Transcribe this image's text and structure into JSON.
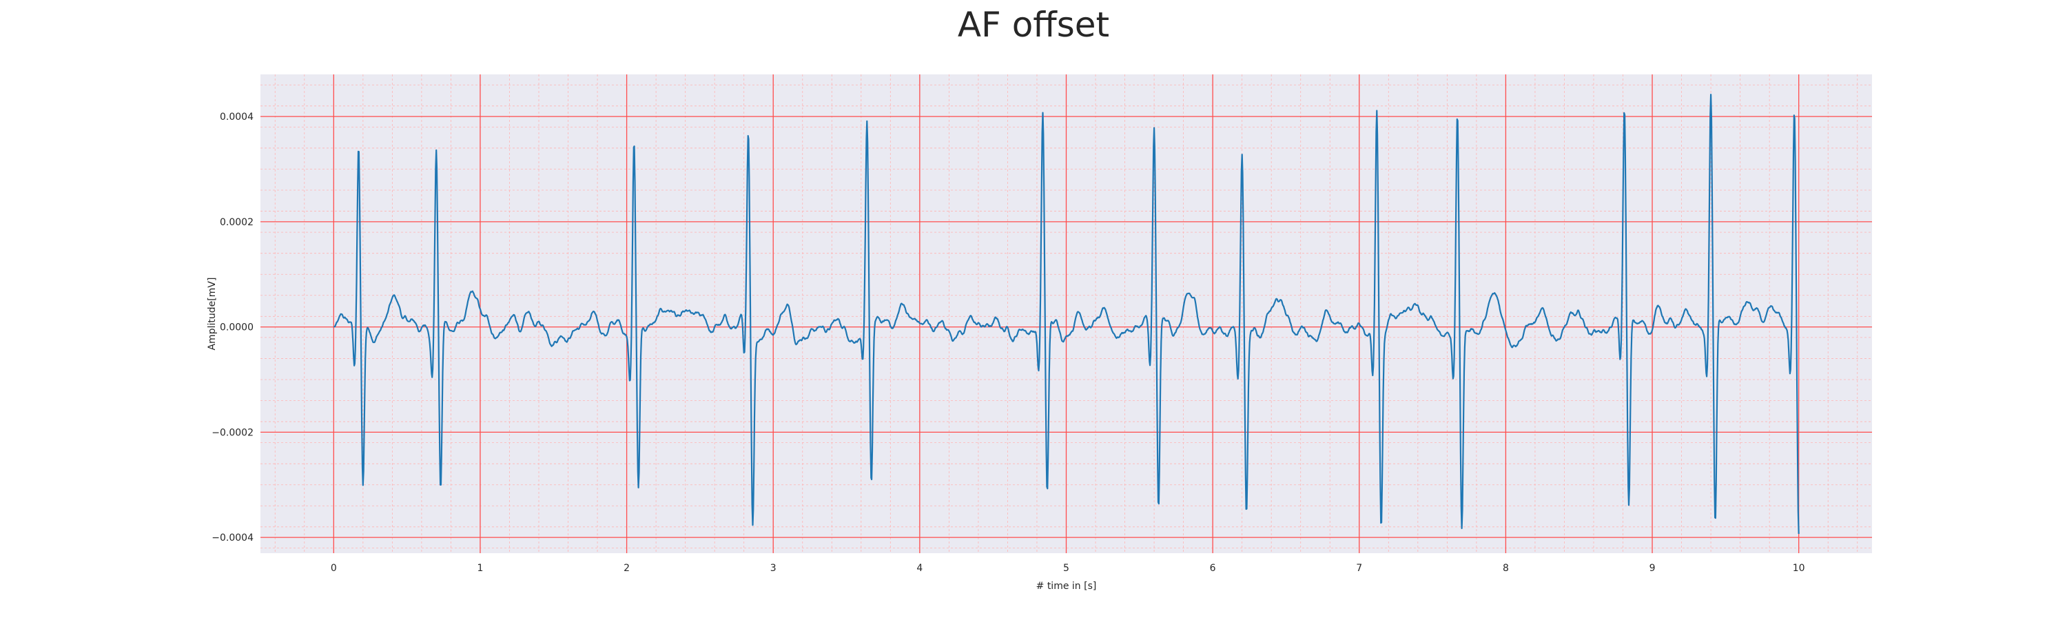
{
  "page": {
    "title": "AF offset"
  },
  "chart_data": {
    "type": "line",
    "title": "AF offset",
    "xlabel": "# time in [s]",
    "ylabel": "Amplitude[mV]",
    "xlim": [
      -0.5,
      10.5
    ],
    "ylim": [
      -0.00043,
      0.00048
    ],
    "xticks": [
      0,
      1,
      2,
      3,
      4,
      5,
      6,
      7,
      8,
      9,
      10
    ],
    "xtick_labels": [
      "0",
      "1",
      "2",
      "3",
      "4",
      "5",
      "6",
      "7",
      "8",
      "9",
      "10"
    ],
    "yticks": [
      -0.0004,
      -0.0002,
      0.0,
      0.0002,
      0.0004
    ],
    "ytick_labels": [
      "−0.0004",
      "−0.0002",
      "0.0000",
      "0.0002",
      "0.0004"
    ],
    "grid": {
      "major": true,
      "minor": true,
      "major_color": "#ff4d4d",
      "minor_color": "#ffb3b3"
    },
    "background": "#eaeaf2",
    "line_color": "#1f77b4",
    "series": [
      {
        "beats": [
          {
            "t": 0.17,
            "r": 0.00034,
            "s": -0.00031
          },
          {
            "t": 0.7,
            "r": 0.00035,
            "s": -0.00031
          },
          {
            "t": 2.05,
            "r": 0.00037,
            "s": -0.00031
          },
          {
            "t": 2.83,
            "r": 0.00037,
            "s": -0.00036
          },
          {
            "t": 3.64,
            "r": 0.00036,
            "s": -0.00031
          },
          {
            "t": 4.84,
            "r": 0.0004,
            "s": -0.00033
          },
          {
            "t": 5.6,
            "r": 0.00036,
            "s": -0.00037
          },
          {
            "t": 6.2,
            "r": 0.00035,
            "s": -0.00034
          },
          {
            "t": 7.12,
            "r": 0.00044,
            "s": -0.00035
          },
          {
            "t": 7.67,
            "r": 0.0004,
            "s": -0.00039
          },
          {
            "t": 8.81,
            "r": 0.00041,
            "s": -0.00035
          },
          {
            "t": 9.4,
            "r": 0.00044,
            "s": -0.00038
          },
          {
            "t": 9.97,
            "r": 0.00041,
            "s": -0.00037
          }
        ],
        "baseline_noise_amplitude": 4e-05,
        "t_start": 0.0,
        "t_end": 10.0
      }
    ]
  }
}
